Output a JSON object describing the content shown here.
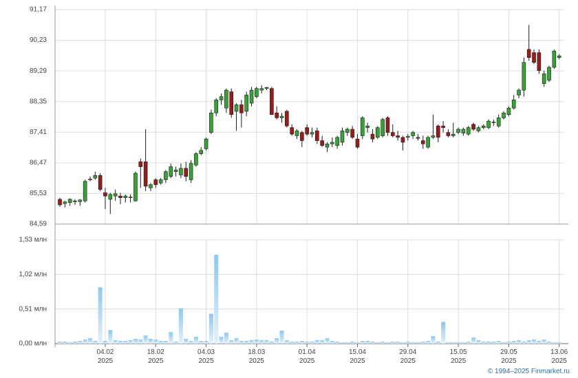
{
  "chart_data": [
    {
      "type": "candlestick",
      "colors": {
        "up": "#36a336",
        "down": "#9b1b1b",
        "outline": "#1a1a1a"
      },
      "ylim": [
        84.59,
        91.17
      ],
      "yticks": [
        {
          "value": 84.59,
          "label": "84,59"
        },
        {
          "value": 85.53,
          "label": "85,53"
        },
        {
          "value": 86.47,
          "label": "86,47"
        },
        {
          "value": 87.41,
          "label": "87,41"
        },
        {
          "value": 88.35,
          "label": "88,35"
        },
        {
          "value": 89.29,
          "label": "89,29"
        },
        {
          "value": 90.23,
          "label": "90,23"
        },
        {
          "value": 91.17,
          "label": "91,17"
        }
      ],
      "grid": true,
      "open": [
        85.35,
        85.22,
        85.25,
        85.28,
        85.28,
        85.3,
        85.95,
        86.0,
        86.08,
        85.55,
        85.35,
        85.45,
        85.45,
        85.4,
        85.4,
        85.3,
        86.5,
        86.5,
        85.7,
        85.95,
        85.85,
        85.95,
        86.05,
        86.2,
        86.1,
        86.3,
        85.95,
        86.4,
        86.75,
        86.9,
        87.4,
        88.0,
        88.4,
        88.15,
        88.65,
        88.05,
        88.25,
        88.05,
        88.3,
        88.5,
        88.7,
        88.75,
        88.75,
        88.0,
        87.85,
        88.05,
        87.55,
        87.3,
        87.4,
        87.55,
        87.35,
        87.45,
        87.15,
        86.95,
        87.05,
        87.0,
        87.1,
        87.4,
        87.5,
        87.2,
        87.3,
        87.55,
        87.35,
        87.25,
        87.3,
        87.85,
        87.4,
        87.3,
        87.25,
        87.25,
        87.3,
        87.25,
        87.15,
        86.95,
        87.25,
        87.6,
        87.6,
        87.4,
        87.3,
        87.4,
        87.38,
        87.35,
        87.65,
        87.45,
        87.55,
        87.55,
        87.7,
        87.6,
        87.85,
        87.95,
        88.15,
        88.55,
        88.7,
        89.95,
        89.85,
        89.85,
        88.9,
        89.0,
        89.4,
        89.7
      ],
      "high": [
        85.4,
        85.3,
        85.38,
        85.35,
        85.35,
        85.95,
        86.05,
        86.2,
        86.15,
        85.7,
        85.55,
        85.65,
        85.55,
        85.5,
        85.5,
        86.2,
        86.6,
        87.5,
        85.85,
        86.0,
        86.0,
        86.25,
        86.45,
        86.35,
        86.45,
        86.5,
        86.55,
        86.8,
        86.95,
        87.25,
        88.1,
        88.45,
        88.6,
        88.75,
        88.75,
        88.3,
        88.4,
        88.65,
        88.8,
        88.8,
        88.85,
        88.8,
        88.8,
        88.2,
        88.0,
        88.1,
        87.65,
        87.5,
        87.45,
        87.65,
        87.55,
        87.55,
        87.3,
        87.1,
        87.25,
        87.3,
        87.55,
        87.55,
        87.6,
        87.35,
        87.9,
        87.7,
        87.5,
        87.6,
        87.85,
        87.9,
        87.65,
        87.45,
        87.3,
        87.35,
        87.45,
        87.35,
        87.3,
        87.3,
        87.95,
        87.65,
        87.75,
        87.5,
        87.7,
        87.55,
        87.55,
        87.6,
        87.7,
        87.6,
        87.65,
        87.8,
        87.8,
        87.95,
        88.05,
        88.2,
        88.55,
        88.75,
        89.7,
        90.7,
        89.95,
        89.95,
        89.3,
        89.45,
        89.95,
        89.8
      ],
      "low": [
        85.12,
        85.1,
        85.15,
        85.18,
        85.15,
        85.25,
        85.9,
        85.95,
        85.6,
        85.05,
        84.9,
        85.3,
        85.2,
        85.25,
        85.25,
        85.28,
        85.7,
        85.6,
        85.6,
        85.7,
        85.8,
        85.85,
        86.0,
        86.05,
        86.0,
        85.9,
        85.85,
        86.35,
        86.7,
        86.85,
        87.35,
        87.9,
        88.25,
        88.0,
        87.85,
        87.45,
        87.55,
        87.9,
        88.2,
        88.45,
        88.6,
        88.7,
        87.95,
        87.8,
        87.7,
        87.55,
        87.3,
        87.2,
        86.95,
        87.3,
        87.25,
        87.05,
        86.95,
        86.8,
        86.95,
        86.9,
        87.0,
        87.3,
        87.2,
        86.9,
        87.2,
        87.4,
        87.1,
        87.2,
        87.25,
        87.3,
        87.25,
        87.15,
        86.85,
        87.15,
        87.2,
        87.15,
        86.9,
        86.9,
        87.2,
        87.1,
        87.4,
        87.25,
        87.25,
        87.35,
        87.3,
        87.3,
        87.45,
        87.4,
        87.5,
        87.5,
        87.6,
        87.55,
        87.8,
        87.9,
        88.1,
        88.45,
        88.5,
        89.6,
        89.5,
        89.2,
        88.8,
        88.95,
        89.35,
        89.65
      ],
      "close": [
        85.18,
        85.27,
        85.35,
        85.3,
        85.33,
        85.9,
        85.97,
        86.08,
        85.65,
        85.45,
        85.5,
        85.52,
        85.4,
        85.45,
        85.42,
        86.15,
        86.35,
        85.75,
        85.8,
        85.8,
        85.95,
        86.2,
        86.35,
        86.25,
        86.3,
        86.05,
        86.45,
        86.75,
        86.85,
        87.2,
        88.0,
        88.4,
        88.5,
        88.7,
        87.95,
        88.25,
        88.0,
        88.55,
        88.7,
        88.75,
        88.75,
        88.78,
        87.95,
        87.85,
        87.9,
        87.6,
        87.35,
        87.45,
        87.15,
        87.35,
        87.4,
        87.15,
        87.0,
        87.05,
        87.1,
        87.25,
        87.45,
        87.5,
        87.25,
        86.95,
        87.85,
        87.6,
        87.2,
        87.55,
        87.8,
        87.4,
        87.3,
        87.25,
        87.1,
        87.28,
        87.4,
        87.22,
        87.05,
        87.25,
        87.3,
        87.25,
        87.55,
        87.3,
        87.35,
        87.5,
        87.5,
        87.55,
        87.5,
        87.55,
        87.6,
        87.75,
        87.72,
        87.85,
        88.0,
        88.15,
        88.4,
        88.7,
        89.55,
        89.7,
        89.55,
        89.3,
        89.2,
        89.4,
        89.9,
        89.75
      ]
    },
    {
      "type": "bar",
      "color": "#8cc8f0",
      "ylim": [
        0,
        1.53
      ],
      "yticks": [
        {
          "value": 0,
          "label": "0,00 млн"
        },
        {
          "value": 0.51,
          "label": "0,51 млн"
        },
        {
          "value": 1.02,
          "label": "1,02 млн"
        },
        {
          "value": 1.53,
          "label": "1,53 млн"
        }
      ],
      "grid": true,
      "categories": [
        null,
        null,
        null,
        null,
        null,
        null,
        null,
        null,
        null,
        "04.02\n2025",
        null,
        null,
        null,
        null,
        null,
        null,
        null,
        null,
        null,
        "18.02\n2025",
        null,
        null,
        null,
        null,
        null,
        null,
        null,
        null,
        null,
        "04.03\n2025",
        null,
        null,
        null,
        null,
        null,
        null,
        null,
        null,
        null,
        "18.03\n2025",
        null,
        null,
        null,
        null,
        null,
        null,
        null,
        null,
        null,
        "01.04\n2025",
        null,
        null,
        null,
        null,
        null,
        null,
        null,
        null,
        null,
        "15.04\n2025",
        null,
        null,
        null,
        null,
        null,
        null,
        null,
        null,
        null,
        "29.04\n2025",
        null,
        null,
        null,
        null,
        null,
        null,
        null,
        null,
        null,
        "15.05\n2025",
        null,
        null,
        null,
        null,
        null,
        null,
        null,
        null,
        null,
        "29.05\n2025",
        null,
        null,
        null,
        null,
        null,
        null,
        null,
        null,
        null,
        "13.06\n2025"
      ],
      "values": [
        0.03,
        0.03,
        0.02,
        0.03,
        0.04,
        0.06,
        0.08,
        0.04,
        0.83,
        0.04,
        0.2,
        0.05,
        0.04,
        0.04,
        0.05,
        0.07,
        0.06,
        0.12,
        0.07,
        0.06,
        0.04,
        0.04,
        0.17,
        0.03,
        0.52,
        0.07,
        0.04,
        0.1,
        0.04,
        0.04,
        0.44,
        1.31,
        0.1,
        0.16,
        0.05,
        0.08,
        0.04,
        0.04,
        0.05,
        0.06,
        0.05,
        0.05,
        0.03,
        0.08,
        0.19,
        0.05,
        0.03,
        0.03,
        0.04,
        0.03,
        0.03,
        0.05,
        0.05,
        0.08,
        0.04,
        0.03,
        0.02,
        0.02,
        0.03,
        0.02,
        0.04,
        0.04,
        0.03,
        0.02,
        0.03,
        0.02,
        0.03,
        0.03,
        0.02,
        0.03,
        0.02,
        0.02,
        0.03,
        0.04,
        0.11,
        0.03,
        0.32,
        0.02,
        0.02,
        0.02,
        0.02,
        0.03,
        0.09,
        0.05,
        0.03,
        0.03,
        0.03,
        0.04,
        0.02,
        0.03,
        0.04,
        0.05,
        0.03,
        0.05,
        0.06,
        0.04,
        0.06,
        0.03,
        0.02,
        0.02
      ]
    }
  ],
  "footer": "© 1994–2025 Finmarket.ru"
}
